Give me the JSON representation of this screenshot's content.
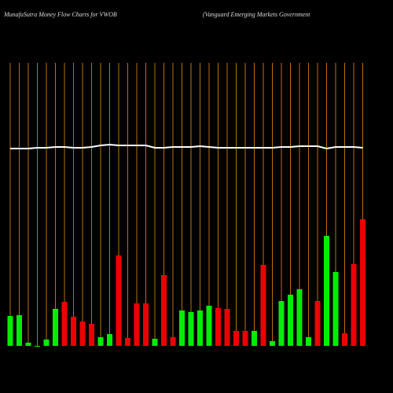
{
  "chart_data": {
    "type": "bar",
    "title": "MunafaSutra  Money Flow  Charts for VWOB",
    "subtitle": "(Vanguard Emerging Markets Government",
    "categories": [
      null,
      null,
      null,
      null,
      null,
      null,
      null,
      null,
      null,
      null,
      null,
      null,
      null,
      null,
      null,
      null,
      null,
      null,
      null,
      null,
      null,
      null,
      null,
      null,
      null,
      null,
      null,
      null,
      null,
      null,
      null,
      null,
      null,
      null,
      null,
      null,
      null,
      null,
      null,
      null
    ],
    "values": [
      38,
      39,
      4,
      -1,
      8,
      47,
      56,
      37,
      31,
      28,
      11,
      15,
      115,
      10,
      54,
      54,
      9,
      90,
      11,
      45,
      43,
      45,
      51,
      48,
      47,
      19,
      19,
      19,
      103,
      6,
      57,
      65,
      72,
      11,
      57,
      140,
      94,
      16,
      104,
      161
    ],
    "bar_colors": [
      "#00ee00",
      "#00ee00",
      "#00ee00",
      "#00ee00",
      "#00ee00",
      "#00ee00",
      "#ee0000",
      "#ee0000",
      "#ee0000",
      "#ee0000",
      "#00ee00",
      "#00ee00",
      "#ee0000",
      "#ee0000",
      "#ee0000",
      "#ee0000",
      "#00ee00",
      "#ee0000",
      "#ee0000",
      "#00ee00",
      "#00ee00",
      "#00ee00",
      "#00ee00",
      "#ee0000",
      "#ee0000",
      "#ee0000",
      "#ee0000",
      "#00ee00",
      "#ee0000",
      "#00ee00",
      "#00ee00",
      "#00ee00",
      "#00ee00",
      "#00ee00",
      "#ee0000",
      "#00ee00",
      "#00ee00",
      "#ee0000",
      "#ee0000",
      "#ee0000"
    ],
    "line_values": [
      251,
      251,
      251,
      252,
      252,
      253,
      253,
      252,
      252,
      253,
      255,
      256,
      255,
      255,
      255,
      255,
      252,
      252,
      253,
      253,
      253,
      254,
      253,
      252,
      252,
      252,
      252,
      252,
      252,
      252,
      253,
      253,
      254,
      254,
      254,
      251,
      253,
      253,
      253,
      252
    ],
    "line_color": "#ffffff",
    "grid_color": "#b8720a",
    "grid": true
  }
}
